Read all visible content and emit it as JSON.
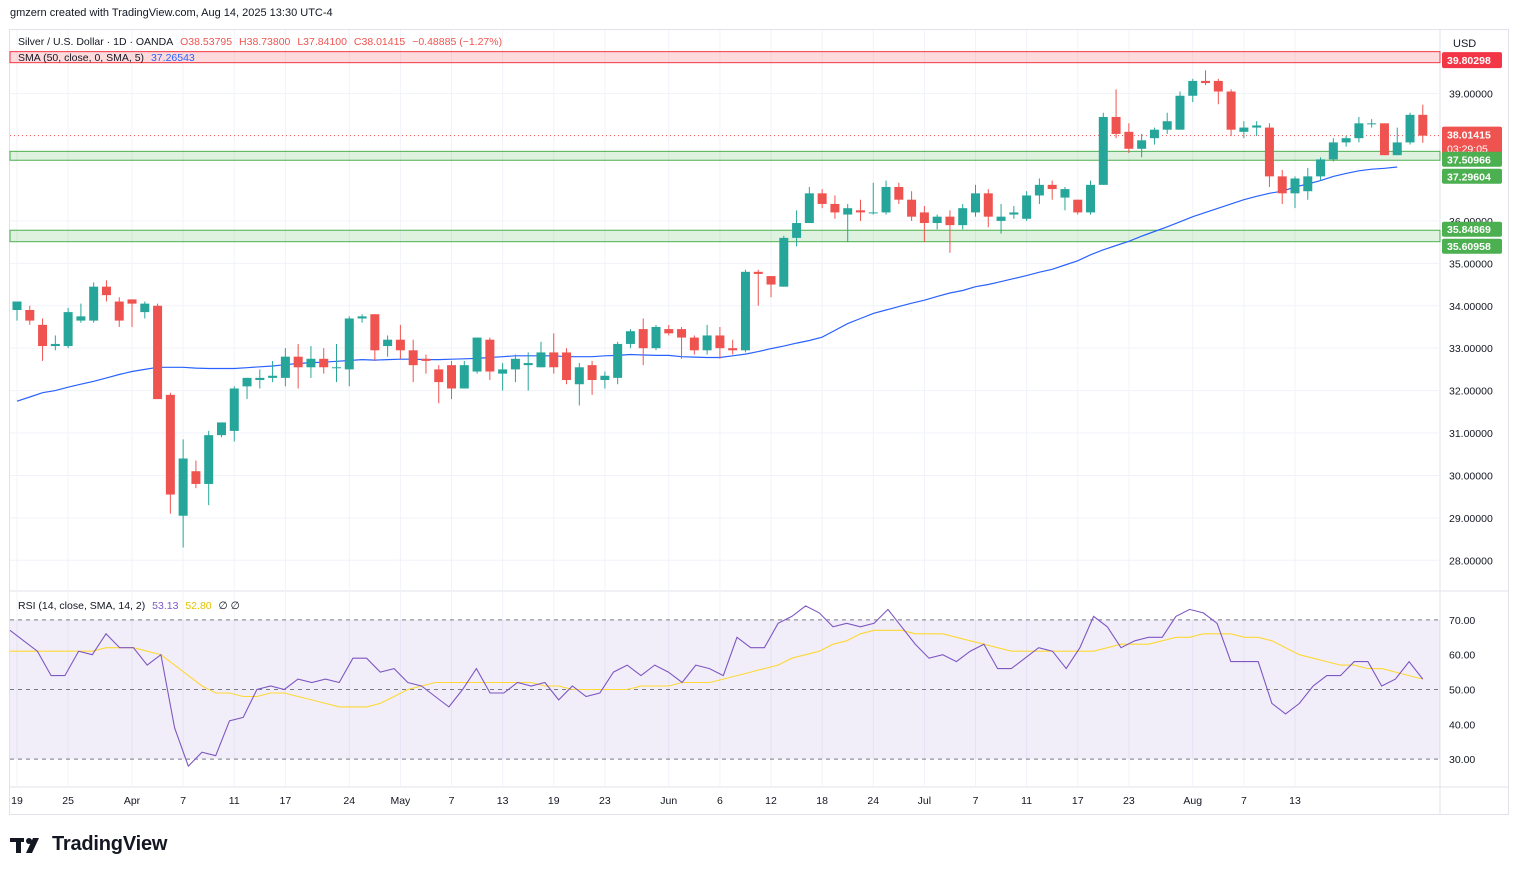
{
  "header": {
    "attribution": "gmzern created with TradingView.com, Aug 14, 2025 13:30 UTC-4"
  },
  "legend": {
    "symbol": "Silver / U.S. Dollar · 1D · OANDA",
    "open": "O38.53795",
    "high": "H38.73800",
    "low": "L37.84100",
    "close": "C38.01415",
    "change": "−0.48885 (−1.27%)",
    "sma_label": "SMA (50, close, 0, SMA, 5)",
    "sma_value": "37.26543",
    "rsi_label": "RSI (14, close, SMA, 14, 2)",
    "rsi_value": "53.13",
    "rsi_ma_value": "52.80",
    "rsi_extra": "∅ ∅"
  },
  "currency": "USD",
  "brand": {
    "name": "TradingView"
  },
  "colors": {
    "up": "#26a69a",
    "down": "#ef5350",
    "sma": "#2962ff",
    "rsi": "#7e57c2",
    "rsi_ma": "#fdd835",
    "resistance": "#f23645",
    "support": "#4caf50",
    "rsi_band": "#7e57c2"
  },
  "chart_data": [
    {
      "type": "candlestick",
      "title": "Silver / U.S. Dollar · 1D · OANDA",
      "ylim": [
        27.3,
        40.5
      ],
      "y_ticks": [
        28,
        29,
        30,
        31,
        32,
        33,
        34,
        35,
        36,
        39
      ],
      "y_tick_labels": [
        "28.00000",
        "29.00000",
        "30.00000",
        "31.00000",
        "32.00000",
        "33.00000",
        "34.00000",
        "35.00000",
        "36.00000",
        "39.00000"
      ],
      "x_ticks": [
        "19",
        "25",
        "Apr",
        "7",
        "11",
        "17",
        "24",
        "May",
        "7",
        "13",
        "19",
        "23",
        "Jun",
        "6",
        "12",
        "18",
        "24",
        "Jul",
        "7",
        "11",
        "17",
        "23",
        "Aug",
        "7",
        "13"
      ],
      "x_tick_bar_index": [
        0,
        4,
        9,
        13,
        17,
        21,
        26,
        30,
        34,
        38,
        42,
        46,
        51,
        55,
        59,
        63,
        67,
        71,
        75,
        79,
        83,
        87,
        92,
        96,
        100
      ],
      "candles": [
        {
          "o": 33.9,
          "h": 34.1,
          "l": 33.65,
          "c": 34.1
        },
        {
          "o": 33.9,
          "h": 34.0,
          "l": 33.55,
          "c": 33.65
        },
        {
          "o": 33.55,
          "h": 33.7,
          "l": 32.7,
          "c": 33.05
        },
        {
          "o": 33.05,
          "h": 33.3,
          "l": 32.95,
          "c": 33.1
        },
        {
          "o": 33.05,
          "h": 33.95,
          "l": 33.0,
          "c": 33.85
        },
        {
          "o": 33.65,
          "h": 34.05,
          "l": 33.6,
          "c": 33.75
        },
        {
          "o": 33.65,
          "h": 34.55,
          "l": 33.6,
          "c": 34.45
        },
        {
          "o": 34.45,
          "h": 34.6,
          "l": 34.1,
          "c": 34.25
        },
        {
          "o": 34.1,
          "h": 34.2,
          "l": 33.5,
          "c": 33.65
        },
        {
          "o": 34.15,
          "h": 34.15,
          "l": 33.5,
          "c": 34.05
        },
        {
          "o": 33.85,
          "h": 34.1,
          "l": 33.7,
          "c": 34.05
        },
        {
          "o": 34.0,
          "h": 34.05,
          "l": 31.8,
          "c": 31.8
        },
        {
          "o": 31.9,
          "h": 31.95,
          "l": 29.1,
          "c": 29.55
        },
        {
          "o": 29.05,
          "h": 30.85,
          "l": 28.3,
          "c": 30.4
        },
        {
          "o": 30.1,
          "h": 30.35,
          "l": 29.7,
          "c": 29.8
        },
        {
          "o": 29.8,
          "h": 31.05,
          "l": 29.3,
          "c": 30.95
        },
        {
          "o": 30.95,
          "h": 31.25,
          "l": 30.9,
          "c": 31.25
        },
        {
          "o": 31.05,
          "h": 32.1,
          "l": 30.8,
          "c": 32.05
        },
        {
          "o": 32.1,
          "h": 32.3,
          "l": 31.8,
          "c": 32.3
        },
        {
          "o": 32.25,
          "h": 32.5,
          "l": 32.05,
          "c": 32.3
        },
        {
          "o": 32.3,
          "h": 32.7,
          "l": 32.2,
          "c": 32.35
        },
        {
          "o": 32.3,
          "h": 33.0,
          "l": 32.1,
          "c": 32.8
        },
        {
          "o": 32.8,
          "h": 33.1,
          "l": 32.05,
          "c": 32.55
        },
        {
          "o": 32.55,
          "h": 33.05,
          "l": 32.3,
          "c": 32.75
        },
        {
          "o": 32.75,
          "h": 33.0,
          "l": 32.4,
          "c": 32.55
        },
        {
          "o": 32.55,
          "h": 33.1,
          "l": 32.2,
          "c": 32.55
        },
        {
          "o": 32.5,
          "h": 33.75,
          "l": 32.1,
          "c": 33.7
        },
        {
          "o": 33.7,
          "h": 33.8,
          "l": 33.6,
          "c": 33.75
        },
        {
          "o": 33.8,
          "h": 33.8,
          "l": 32.7,
          "c": 32.95
        },
        {
          "o": 33.05,
          "h": 33.3,
          "l": 32.8,
          "c": 33.2
        },
        {
          "o": 33.2,
          "h": 33.55,
          "l": 32.75,
          "c": 32.95
        },
        {
          "o": 32.95,
          "h": 33.2,
          "l": 32.2,
          "c": 32.6
        },
        {
          "o": 32.75,
          "h": 32.85,
          "l": 32.4,
          "c": 32.7
        },
        {
          "o": 32.5,
          "h": 32.6,
          "l": 31.7,
          "c": 32.2
        },
        {
          "o": 32.6,
          "h": 32.7,
          "l": 31.8,
          "c": 32.05
        },
        {
          "o": 32.05,
          "h": 32.7,
          "l": 32.05,
          "c": 32.6
        },
        {
          "o": 32.45,
          "h": 33.25,
          "l": 32.4,
          "c": 33.25
        },
        {
          "o": 33.2,
          "h": 33.25,
          "l": 32.25,
          "c": 32.45
        },
        {
          "o": 32.4,
          "h": 32.65,
          "l": 32.0,
          "c": 32.5
        },
        {
          "o": 32.5,
          "h": 32.85,
          "l": 32.2,
          "c": 32.75
        },
        {
          "o": 32.6,
          "h": 32.9,
          "l": 32.0,
          "c": 32.65
        },
        {
          "o": 32.55,
          "h": 33.15,
          "l": 32.55,
          "c": 32.9
        },
        {
          "o": 32.9,
          "h": 33.35,
          "l": 32.4,
          "c": 32.55
        },
        {
          "o": 32.9,
          "h": 33.0,
          "l": 32.15,
          "c": 32.25
        },
        {
          "o": 32.15,
          "h": 32.65,
          "l": 31.65,
          "c": 32.55
        },
        {
          "o": 32.6,
          "h": 32.7,
          "l": 31.9,
          "c": 32.25
        },
        {
          "o": 32.25,
          "h": 32.45,
          "l": 32.05,
          "c": 32.35
        },
        {
          "o": 32.3,
          "h": 33.15,
          "l": 32.15,
          "c": 33.1
        },
        {
          "o": 33.1,
          "h": 33.45,
          "l": 33.0,
          "c": 33.4
        },
        {
          "o": 33.45,
          "h": 33.7,
          "l": 32.6,
          "c": 33.0
        },
        {
          "o": 33.0,
          "h": 33.55,
          "l": 32.95,
          "c": 33.5
        },
        {
          "o": 33.45,
          "h": 33.55,
          "l": 33.3,
          "c": 33.35
        },
        {
          "o": 33.45,
          "h": 33.5,
          "l": 32.75,
          "c": 33.25
        },
        {
          "o": 33.25,
          "h": 33.3,
          "l": 32.85,
          "c": 32.95
        },
        {
          "o": 32.95,
          "h": 33.55,
          "l": 32.85,
          "c": 33.3
        },
        {
          "o": 33.3,
          "h": 33.5,
          "l": 32.75,
          "c": 33.0
        },
        {
          "o": 33.0,
          "h": 33.2,
          "l": 32.85,
          "c": 32.95
        },
        {
          "o": 32.95,
          "h": 34.85,
          "l": 32.9,
          "c": 34.8
        },
        {
          "o": 34.8,
          "h": 34.85,
          "l": 34.0,
          "c": 34.75
        },
        {
          "o": 34.7,
          "h": 34.7,
          "l": 34.2,
          "c": 34.5
        },
        {
          "o": 34.45,
          "h": 35.65,
          "l": 34.45,
          "c": 35.6
        },
        {
          "o": 35.6,
          "h": 36.25,
          "l": 35.4,
          "c": 35.95
        },
        {
          "o": 35.95,
          "h": 36.8,
          "l": 35.95,
          "c": 36.65
        },
        {
          "o": 36.65,
          "h": 36.75,
          "l": 36.3,
          "c": 36.4
        },
        {
          "o": 36.4,
          "h": 36.6,
          "l": 36.05,
          "c": 36.2
        },
        {
          "o": 36.15,
          "h": 36.4,
          "l": 35.5,
          "c": 36.3
        },
        {
          "o": 36.25,
          "h": 36.5,
          "l": 36.0,
          "c": 36.2
        },
        {
          "o": 36.2,
          "h": 36.9,
          "l": 36.15,
          "c": 36.2
        },
        {
          "o": 36.2,
          "h": 36.95,
          "l": 36.15,
          "c": 36.8
        },
        {
          "o": 36.8,
          "h": 36.9,
          "l": 36.4,
          "c": 36.5
        },
        {
          "o": 36.5,
          "h": 36.7,
          "l": 36.0,
          "c": 36.1
        },
        {
          "o": 36.2,
          "h": 36.35,
          "l": 35.5,
          "c": 35.95
        },
        {
          "o": 35.95,
          "h": 36.15,
          "l": 35.8,
          "c": 36.1
        },
        {
          "o": 36.1,
          "h": 36.25,
          "l": 35.25,
          "c": 35.9
        },
        {
          "o": 35.9,
          "h": 36.4,
          "l": 35.8,
          "c": 36.3
        },
        {
          "o": 36.2,
          "h": 36.85,
          "l": 36.1,
          "c": 36.65
        },
        {
          "o": 36.65,
          "h": 36.75,
          "l": 35.85,
          "c": 36.1
        },
        {
          "o": 36.0,
          "h": 36.4,
          "l": 35.7,
          "c": 36.1
        },
        {
          "o": 36.15,
          "h": 36.35,
          "l": 36.05,
          "c": 36.2
        },
        {
          "o": 36.05,
          "h": 36.7,
          "l": 36.0,
          "c": 36.6
        },
        {
          "o": 36.6,
          "h": 37.0,
          "l": 36.4,
          "c": 36.85
        },
        {
          "o": 36.85,
          "h": 36.95,
          "l": 36.5,
          "c": 36.75
        },
        {
          "o": 36.55,
          "h": 36.8,
          "l": 36.25,
          "c": 36.75
        },
        {
          "o": 36.5,
          "h": 36.5,
          "l": 36.15,
          "c": 36.2
        },
        {
          "o": 36.2,
          "h": 36.95,
          "l": 36.15,
          "c": 36.85
        },
        {
          "o": 36.85,
          "h": 38.55,
          "l": 36.85,
          "c": 38.45
        },
        {
          "o": 38.45,
          "h": 39.1,
          "l": 37.95,
          "c": 38.05
        },
        {
          "o": 38.1,
          "h": 38.3,
          "l": 37.6,
          "c": 37.7
        },
        {
          "o": 37.7,
          "h": 38.05,
          "l": 37.5,
          "c": 37.9
        },
        {
          "o": 37.95,
          "h": 38.2,
          "l": 37.8,
          "c": 38.15
        },
        {
          "o": 38.15,
          "h": 38.55,
          "l": 38.05,
          "c": 38.35
        },
        {
          "o": 38.15,
          "h": 39.05,
          "l": 38.15,
          "c": 38.95
        },
        {
          "o": 38.95,
          "h": 39.35,
          "l": 38.8,
          "c": 39.3
        },
        {
          "o": 39.3,
          "h": 39.55,
          "l": 39.2,
          "c": 39.25
        },
        {
          "o": 39.3,
          "h": 39.35,
          "l": 38.75,
          "c": 39.05
        },
        {
          "o": 39.05,
          "h": 39.1,
          "l": 38.0,
          "c": 38.15
        },
        {
          "o": 38.1,
          "h": 38.35,
          "l": 37.95,
          "c": 38.2
        },
        {
          "o": 38.2,
          "h": 38.35,
          "l": 38.0,
          "c": 38.25
        },
        {
          "o": 38.2,
          "h": 38.3,
          "l": 36.8,
          "c": 37.05
        },
        {
          "o": 37.05,
          "h": 37.2,
          "l": 36.4,
          "c": 36.65
        },
        {
          "o": 36.65,
          "h": 37.05,
          "l": 36.3,
          "c": 37.0
        },
        {
          "o": 36.7,
          "h": 37.25,
          "l": 36.5,
          "c": 37.05
        },
        {
          "o": 37.05,
          "h": 37.5,
          "l": 36.95,
          "c": 37.45
        },
        {
          "o": 37.45,
          "h": 37.95,
          "l": 37.4,
          "c": 37.85
        },
        {
          "o": 37.85,
          "h": 38.0,
          "l": 37.75,
          "c": 37.95
        },
        {
          "o": 37.95,
          "h": 38.45,
          "l": 37.85,
          "c": 38.3
        },
        {
          "o": 38.3,
          "h": 38.4,
          "l": 38.2,
          "c": 38.3
        },
        {
          "o": 38.3,
          "h": 38.3,
          "l": 37.55,
          "c": 37.55
        },
        {
          "o": 37.55,
          "h": 38.2,
          "l": 37.55,
          "c": 37.85
        },
        {
          "o": 37.85,
          "h": 38.55,
          "l": 37.8,
          "c": 38.5
        },
        {
          "o": 38.5,
          "h": 38.74,
          "l": 37.84,
          "c": 38.01
        }
      ],
      "sma_50": [
        31.75,
        31.85,
        31.95,
        32.0,
        32.08,
        32.15,
        32.22,
        32.3,
        32.38,
        32.45,
        32.5,
        32.55,
        32.55,
        32.55,
        32.53,
        32.52,
        32.52,
        32.52,
        32.54,
        32.56,
        32.58,
        32.61,
        32.64,
        32.66,
        32.67,
        32.69,
        32.71,
        32.73,
        32.72,
        32.73,
        32.74,
        32.74,
        32.73,
        32.73,
        32.74,
        32.75,
        32.76,
        32.78,
        32.8,
        32.82,
        32.82,
        32.82,
        32.82,
        32.8,
        32.8,
        32.8,
        32.82,
        32.83,
        32.85,
        32.84,
        32.83,
        32.83,
        32.8,
        32.79,
        32.78,
        32.78,
        32.82,
        32.86,
        32.92,
        32.99,
        33.05,
        33.12,
        33.18,
        33.26,
        33.42,
        33.58,
        33.7,
        33.82,
        33.9,
        33.98,
        34.06,
        34.13,
        34.22,
        34.3,
        34.36,
        34.45,
        34.5,
        34.57,
        34.64,
        34.71,
        34.79,
        34.86,
        34.96,
        35.06,
        35.2,
        35.32,
        35.42,
        35.52,
        35.64,
        35.75,
        35.86,
        35.98,
        36.1,
        36.2,
        36.3,
        36.4,
        36.5,
        36.58,
        36.65,
        36.7,
        36.8,
        36.87,
        36.95,
        37.05,
        37.12,
        37.18,
        37.22,
        37.24,
        37.27
      ],
      "levels": [
        {
          "kind": "resistance",
          "low": 39.73,
          "high": 39.99,
          "label": "39.80298"
        },
        {
          "kind": "support",
          "low": 37.43,
          "high": 37.64,
          "label": "37.50966",
          "label2": "37.29604"
        },
        {
          "kind": "support",
          "low": 35.51,
          "high": 35.78,
          "label": "35.84869",
          "label2": "35.60958"
        }
      ],
      "last_price": "38.01415",
      "countdown": "03:29:05"
    },
    {
      "type": "line",
      "title": "RSI (14, close, SMA, 14, 2)",
      "ylim": [
        22,
        78
      ],
      "y_ticks": [
        30,
        40,
        50,
        60,
        70
      ],
      "y_tick_labels": [
        "30.00",
        "40.00",
        "50.00",
        "60.00",
        "70.00"
      ],
      "band": [
        30,
        70
      ],
      "series": [
        {
          "name": "RSI",
          "values": [
            67,
            64,
            61,
            54,
            54,
            61,
            60,
            66,
            62,
            62,
            57,
            60,
            39,
            28,
            32,
            31,
            41,
            42,
            50,
            51,
            50,
            53,
            52,
            53,
            52,
            59,
            59,
            55,
            56,
            52,
            51,
            48,
            45,
            50,
            56,
            49,
            49,
            52,
            51,
            52,
            47,
            51,
            48,
            49,
            55,
            57,
            54,
            57,
            55,
            52,
            57,
            56,
            54,
            65,
            62,
            62,
            69,
            71,
            74,
            72,
            68,
            69,
            68,
            69,
            73,
            68,
            63,
            59,
            60,
            58,
            61,
            63,
            56,
            56,
            59,
            62,
            61,
            56,
            62,
            71,
            68,
            62,
            64,
            65,
            65,
            71,
            73,
            72,
            69,
            58,
            58,
            58,
            46,
            43,
            46,
            51,
            54,
            54,
            58,
            58,
            51,
            53,
            58,
            53
          ]
        },
        {
          "name": "RSI-based MA",
          "values": [
            61,
            61,
            61,
            61,
            61,
            61,
            61,
            62,
            62,
            62,
            61,
            60,
            57,
            54,
            51,
            49,
            49,
            48,
            48,
            49,
            49,
            48,
            47,
            46,
            45,
            45,
            45,
            46,
            48,
            50,
            51,
            52,
            52,
            52,
            52,
            52,
            52,
            52,
            52,
            51,
            51,
            50,
            50,
            50,
            50,
            50,
            51,
            51,
            51,
            52,
            52,
            52,
            53,
            54,
            55,
            56,
            57,
            59,
            60,
            61,
            63,
            64,
            66,
            67,
            67,
            67,
            66,
            66,
            66,
            65,
            64,
            63,
            62,
            61,
            61,
            61,
            61,
            61,
            61,
            61,
            62,
            63,
            63,
            63,
            64,
            65,
            65,
            66,
            66,
            66,
            65,
            65,
            64,
            62,
            60,
            59,
            58,
            57,
            57,
            56,
            56,
            55,
            54,
            53
          ]
        }
      ]
    }
  ]
}
